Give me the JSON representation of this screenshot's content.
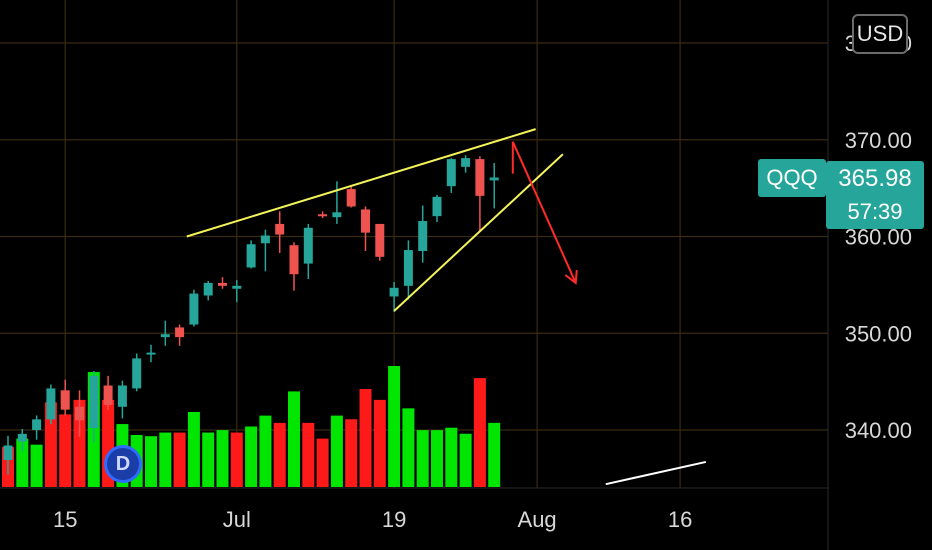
{
  "currency_button": "USD",
  "symbol": "QQQ",
  "last_price": "365.98",
  "countdown": "57:39",
  "dividend_marker": "D",
  "colors": {
    "up": "#26a69a",
    "down": "#ef5350",
    "volume_up": "#00e600",
    "volume_down": "#ff1a1a",
    "trendline": "#f4f45a",
    "arrow": "#ff2b2b",
    "grid": "#3a2a10"
  },
  "chart_data": {
    "type": "candlestick",
    "price_axis": {
      "ticks": [
        340,
        350,
        360,
        370,
        380
      ],
      "tick_labels": [
        "340.00",
        "350.00",
        "360.00",
        "370.00",
        "380.00"
      ],
      "range": [
        334.4,
        385
      ]
    },
    "time_axis": {
      "tick_labels": [
        "15",
        "Jul",
        "19",
        "Aug",
        "16"
      ],
      "tick_bars": [
        4,
        16,
        27,
        37,
        47
      ]
    },
    "candles": [
      {
        "o": 336.9,
        "h": 339.4,
        "l": 335.4,
        "c": 338.4
      },
      {
        "o": 338.8,
        "h": 340.1,
        "l": 337.8,
        "c": 339.6
      },
      {
        "o": 340.0,
        "h": 341.5,
        "l": 339.0,
        "c": 341.1
      },
      {
        "o": 341.1,
        "h": 344.7,
        "l": 340.6,
        "c": 344.3
      },
      {
        "o": 344.1,
        "h": 345.2,
        "l": 341.5,
        "c": 342.1
      },
      {
        "o": 342.4,
        "h": 344.1,
        "l": 339.3,
        "c": 341.0
      },
      {
        "o": 340.2,
        "h": 346.1,
        "l": 338.7,
        "c": 345.6
      },
      {
        "o": 344.6,
        "h": 345.6,
        "l": 342.1,
        "c": 342.6
      },
      {
        "o": 342.4,
        "h": 345.1,
        "l": 341.2,
        "c": 344.6
      },
      {
        "o": 344.3,
        "h": 347.9,
        "l": 344.0,
        "c": 347.4
      },
      {
        "o": 347.8,
        "h": 348.8,
        "l": 347.0,
        "c": 348.0
      },
      {
        "o": 349.6,
        "h": 351.3,
        "l": 348.7,
        "c": 349.9
      },
      {
        "o": 350.6,
        "h": 350.9,
        "l": 348.7,
        "c": 349.6
      },
      {
        "o": 350.9,
        "h": 354.5,
        "l": 350.7,
        "c": 354.1
      },
      {
        "o": 353.9,
        "h": 355.4,
        "l": 353.4,
        "c": 355.2
      },
      {
        "o": 355.2,
        "h": 355.8,
        "l": 354.6,
        "c": 354.9
      },
      {
        "o": 354.6,
        "h": 355.5,
        "l": 353.2,
        "c": 354.9
      },
      {
        "o": 356.8,
        "h": 359.6,
        "l": 356.7,
        "c": 359.2
      },
      {
        "o": 359.3,
        "h": 360.7,
        "l": 356.4,
        "c": 360.1
      },
      {
        "o": 361.3,
        "h": 362.6,
        "l": 358.3,
        "c": 360.2
      },
      {
        "o": 359.1,
        "h": 359.4,
        "l": 354.4,
        "c": 356.1
      },
      {
        "o": 357.2,
        "h": 361.3,
        "l": 355.6,
        "c": 360.9
      },
      {
        "o": 362.3,
        "h": 362.6,
        "l": 361.9,
        "c": 362.1
      },
      {
        "o": 362.0,
        "h": 365.7,
        "l": 361.3,
        "c": 362.5
      },
      {
        "o": 364.9,
        "h": 365.1,
        "l": 363.0,
        "c": 363.1
      },
      {
        "o": 362.8,
        "h": 363.1,
        "l": 358.5,
        "c": 360.4
      },
      {
        "o": 361.3,
        "h": 361.3,
        "l": 357.5,
        "c": 357.9
      },
      {
        "o": 353.8,
        "h": 355.3,
        "l": 352.2,
        "c": 354.7
      },
      {
        "o": 354.9,
        "h": 359.6,
        "l": 353.5,
        "c": 358.6
      },
      {
        "o": 358.5,
        "h": 363.2,
        "l": 357.3,
        "c": 361.6
      },
      {
        "o": 362.1,
        "h": 364.3,
        "l": 361.5,
        "c": 364.1
      },
      {
        "o": 365.2,
        "h": 368.1,
        "l": 364.5,
        "c": 368.0
      },
      {
        "o": 367.2,
        "h": 368.4,
        "l": 366.6,
        "c": 368.1
      },
      {
        "o": 368.0,
        "h": 368.3,
        "l": 360.5,
        "c": 364.2
      },
      {
        "o": 365.8,
        "h": 367.6,
        "l": 362.9,
        "c": 366.1
      }
    ],
    "volume": [
      {
        "v": 0.33,
        "up": false
      },
      {
        "v": 0.4,
        "up": true
      },
      {
        "v": 0.35,
        "up": true
      },
      {
        "v": 0.7,
        "up": false
      },
      {
        "v": 0.6,
        "up": false
      },
      {
        "v": 0.72,
        "up": false
      },
      {
        "v": 0.95,
        "up": true
      },
      {
        "v": 0.72,
        "up": false
      },
      {
        "v": 0.52,
        "up": true
      },
      {
        "v": 0.43,
        "up": true
      },
      {
        "v": 0.42,
        "up": true
      },
      {
        "v": 0.45,
        "up": true
      },
      {
        "v": 0.45,
        "up": false
      },
      {
        "v": 0.62,
        "up": true
      },
      {
        "v": 0.45,
        "up": true
      },
      {
        "v": 0.47,
        "up": true
      },
      {
        "v": 0.45,
        "up": false
      },
      {
        "v": 0.5,
        "up": true
      },
      {
        "v": 0.59,
        "up": true
      },
      {
        "v": 0.53,
        "up": false
      },
      {
        "v": 0.79,
        "up": true
      },
      {
        "v": 0.53,
        "up": false
      },
      {
        "v": 0.4,
        "up": false
      },
      {
        "v": 0.59,
        "up": true
      },
      {
        "v": 0.56,
        "up": false
      },
      {
        "v": 0.81,
        "up": false
      },
      {
        "v": 0.72,
        "up": false
      },
      {
        "v": 1.0,
        "up": true
      },
      {
        "v": 0.65,
        "up": true
      },
      {
        "v": 0.47,
        "up": true
      },
      {
        "v": 0.47,
        "up": true
      },
      {
        "v": 0.49,
        "up": true
      },
      {
        "v": 0.44,
        "up": true
      },
      {
        "v": 0.9,
        "up": false
      },
      {
        "v": 0.53,
        "up": true
      }
    ],
    "trendlines": [
      {
        "from": [
          12.5,
          360.0
        ],
        "to": [
          36.9,
          371.1
        ]
      },
      {
        "from": [
          27.0,
          352.3
        ],
        "to": [
          38.8,
          368.5
        ]
      },
      {
        "from": [
          41.8,
          334.4
        ],
        "to": [
          48.8,
          336.7
        ],
        "color": "white"
      }
    ],
    "arrow": {
      "from": [
        35.3,
        369.8
      ],
      "to": [
        39.7,
        355.2
      ]
    }
  }
}
